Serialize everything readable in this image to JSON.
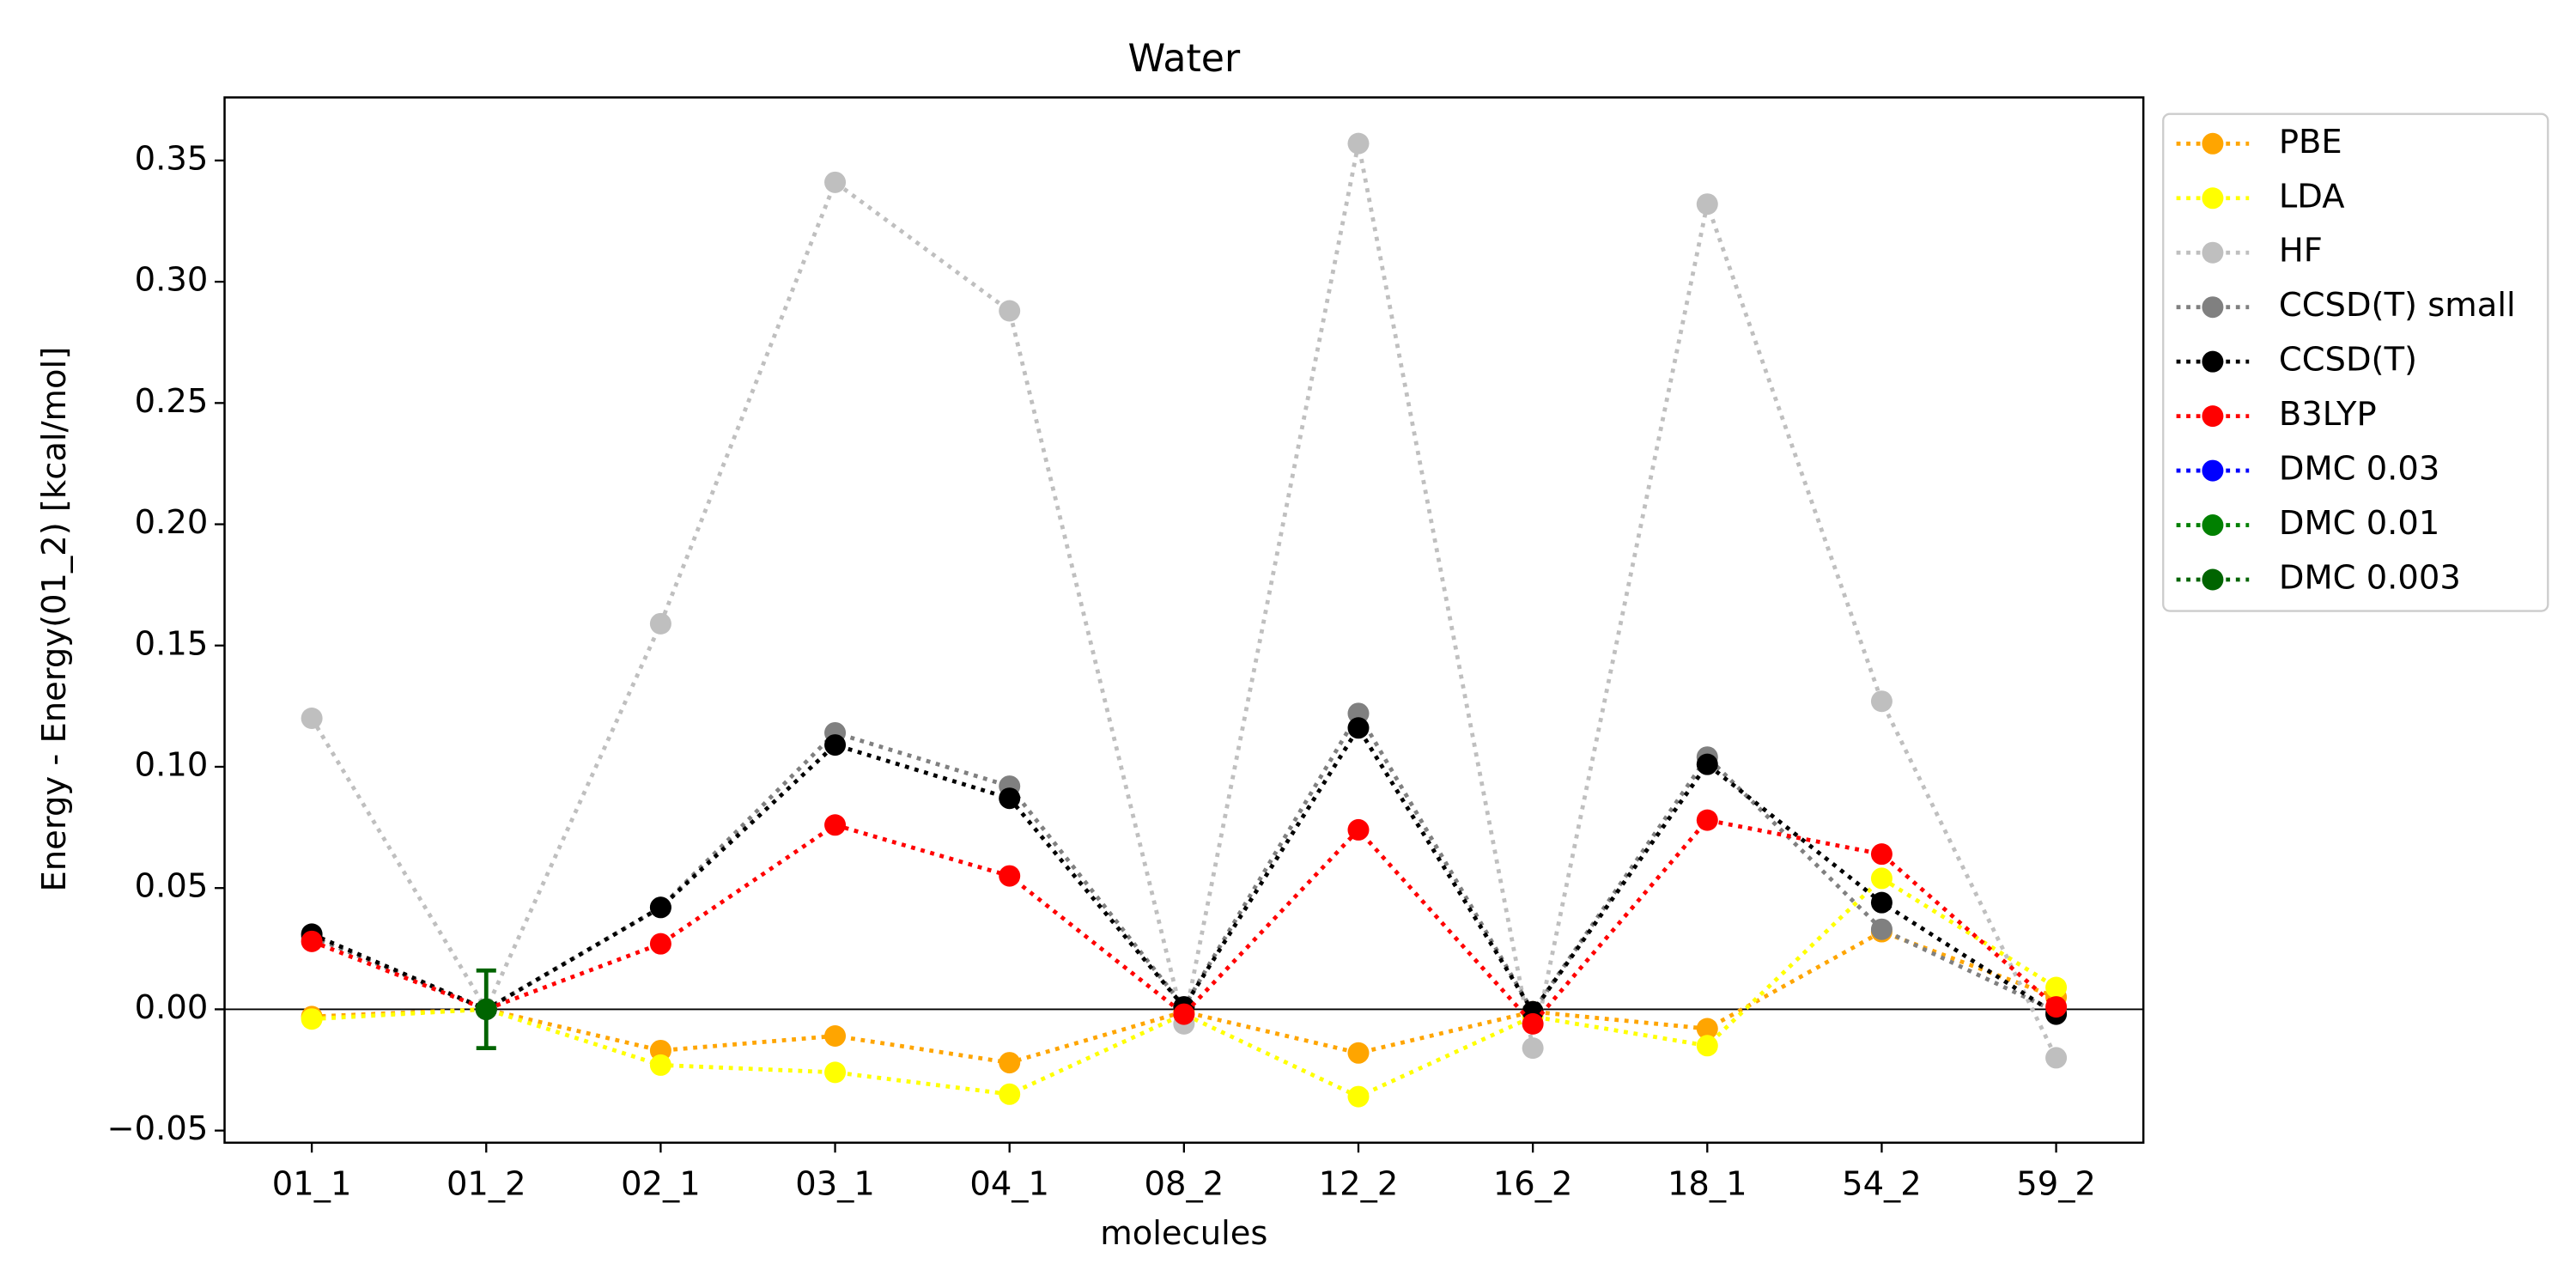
{
  "chart_data": {
    "type": "line",
    "title": "Water",
    "xlabel": "molecules",
    "ylabel": "Energy - Energy(01_2) [kcal/mol]",
    "categories": [
      "01_1",
      "01_2",
      "02_1",
      "03_1",
      "04_1",
      "08_2",
      "12_2",
      "16_2",
      "18_1",
      "54_2",
      "59_2"
    ],
    "ylim": [
      -0.055,
      0.376
    ],
    "yticks": [
      {
        "value": -0.05,
        "label": "−0.05"
      },
      {
        "value": 0,
        "label": "0.00"
      },
      {
        "value": 0.05,
        "label": "0.05"
      },
      {
        "value": 0.1,
        "label": "0.10"
      },
      {
        "value": 0.15,
        "label": "0.15"
      },
      {
        "value": 0.2,
        "label": "0.20"
      },
      {
        "value": 0.25,
        "label": "0.25"
      },
      {
        "value": 0.3,
        "label": "0.30"
      },
      {
        "value": 0.35,
        "label": "0.35"
      }
    ],
    "hline": 0,
    "legend": "outside upper right",
    "grid": false,
    "series": [
      {
        "name": "PBE",
        "color": "#ffa500",
        "values": [
          -0.003,
          0,
          -0.017,
          -0.011,
          -0.022,
          -0.001,
          -0.018,
          -0.001,
          -0.008,
          0.032,
          0.005
        ]
      },
      {
        "name": "LDA",
        "color": "#ffff00",
        "values": [
          -0.004,
          0,
          -0.023,
          -0.026,
          -0.035,
          -0.002,
          -0.036,
          -0.003,
          -0.015,
          0.054,
          0.009
        ]
      },
      {
        "name": "HF",
        "color": "#bfbfbf",
        "values": [
          0.12,
          0,
          0.159,
          0.341,
          0.288,
          -0.006,
          0.357,
          -0.016,
          0.332,
          0.127,
          -0.02
        ]
      },
      {
        "name": "CCSD(T) small",
        "color": "#808080",
        "values": [
          0.03,
          0,
          0.042,
          0.114,
          0.092,
          0.001,
          0.122,
          -0.001,
          0.104,
          0.033,
          -0.001
        ]
      },
      {
        "name": "CCSD(T)",
        "color": "#000000",
        "values": [
          0.031,
          0,
          0.042,
          0.109,
          0.087,
          0.001,
          0.116,
          -0.001,
          0.101,
          0.044,
          -0.002
        ]
      },
      {
        "name": "B3LYP",
        "color": "#ff0000",
        "values": [
          0.028,
          0,
          0.027,
          0.076,
          0.055,
          -0.002,
          0.074,
          -0.006,
          0.078,
          0.064,
          0.001
        ]
      },
      {
        "name": "DMC 0.03",
        "color": "#0000ff",
        "values": [
          null,
          0,
          null,
          null,
          null,
          null,
          null,
          null,
          null,
          null,
          null
        ]
      },
      {
        "name": "DMC 0.01",
        "color": "#008000",
        "values": [
          null,
          0,
          null,
          null,
          null,
          null,
          null,
          null,
          null,
          null,
          null
        ]
      },
      {
        "name": "DMC 0.003",
        "color": "#006400",
        "values": [
          null,
          0,
          null,
          null,
          null,
          null,
          null,
          null,
          null,
          null,
          null
        ],
        "errors": [
          null,
          0.016,
          null,
          null,
          null,
          null,
          null,
          null,
          null,
          null,
          null
        ]
      }
    ]
  }
}
